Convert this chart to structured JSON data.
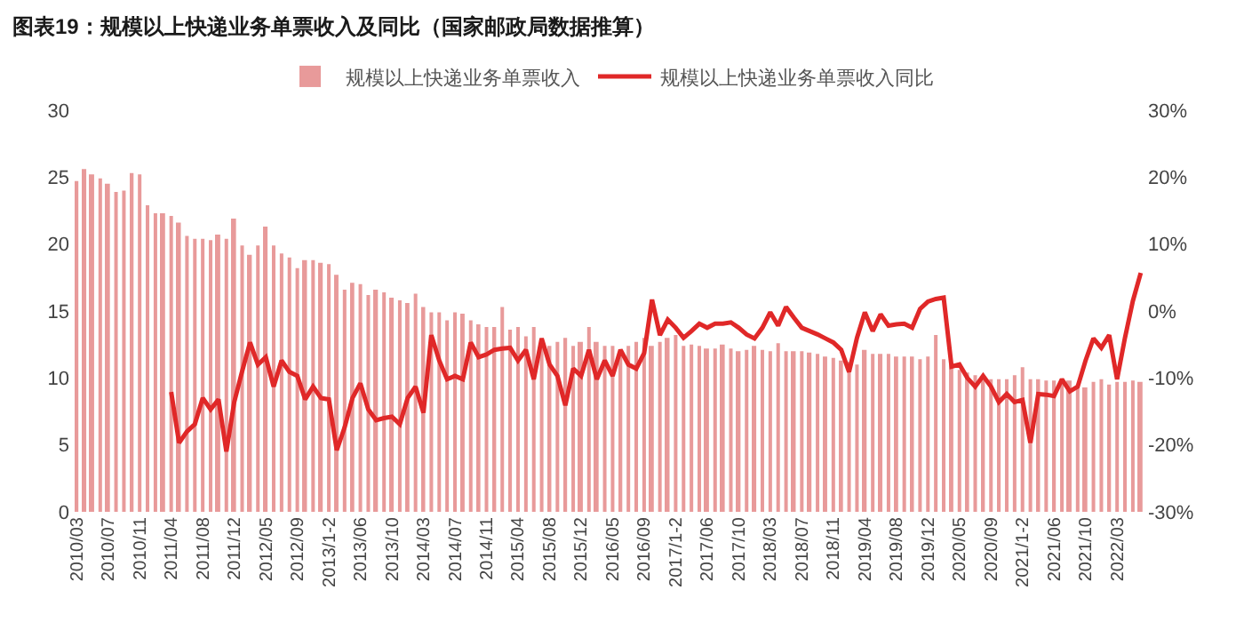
{
  "chart_data": {
    "type": "bar",
    "title": "图表19：规模以上快递业务单票收入及同比（国家邮政局数据推算）",
    "categories": [
      "2010/03",
      null,
      null,
      null,
      "2010/07",
      null,
      null,
      null,
      "2010/11",
      null,
      null,
      null,
      "2011/04",
      null,
      null,
      null,
      "2011/08",
      null,
      null,
      null,
      "2011/12",
      null,
      null,
      null,
      "2012/05",
      null,
      null,
      null,
      "2012/09",
      null,
      null,
      null,
      "2013/1-2",
      null,
      null,
      null,
      "2013/06",
      null,
      null,
      null,
      "2013/10",
      null,
      null,
      null,
      "2014/03",
      null,
      null,
      null,
      "2014/07",
      null,
      null,
      null,
      "2014/11",
      null,
      null,
      null,
      "2015/04",
      null,
      null,
      null,
      "2015/08",
      null,
      null,
      null,
      "2015/12",
      null,
      null,
      null,
      "2016/05",
      null,
      null,
      null,
      "2016/09",
      null,
      null,
      null,
      "2017/1-2",
      null,
      null,
      null,
      "2017/06",
      null,
      null,
      null,
      "2017/10",
      null,
      null,
      null,
      "2018/03",
      null,
      null,
      null,
      "2018/07",
      null,
      null,
      null,
      "2018/11",
      null,
      null,
      null,
      "2019/04",
      null,
      null,
      null,
      "2019/08",
      null,
      null,
      null,
      "2019/12",
      null,
      null,
      null,
      "2020/05",
      null,
      null,
      null,
      "2020/09",
      null,
      null,
      null,
      "2021/1-2",
      null,
      null,
      null,
      "2021/06",
      null,
      null,
      null,
      "2021/10",
      null,
      null,
      null,
      "2022/03",
      null,
      null,
      null
    ],
    "series": [
      {
        "name": "规模以上快递业务单票收入",
        "color": "#e89a9a",
        "values": [
          24.7,
          25.6,
          25.2,
          24.9,
          24.5,
          23.9,
          24.0,
          25.3,
          25.2,
          22.9,
          22.3,
          22.3,
          22.1,
          21.6,
          20.6,
          20.4,
          20.4,
          20.3,
          20.7,
          20.4,
          21.9,
          19.9,
          19.2,
          19.9,
          21.3,
          19.9,
          19.3,
          19.0,
          18.2,
          18.8,
          18.8,
          18.6,
          18.5,
          17.7,
          16.6,
          17.1,
          17.0,
          16.2,
          16.6,
          16.4,
          16.0,
          15.8,
          15.6,
          16.3,
          15.3,
          14.9,
          14.9,
          14.3,
          14.9,
          14.8,
          14.3,
          14.0,
          13.8,
          13.8,
          15.3,
          13.6,
          13.8,
          13.1,
          13.8,
          13.0,
          12.4,
          12.7,
          13.0,
          12.4,
          12.7,
          13.8,
          12.7,
          12.4,
          12.4,
          12.1,
          12.4,
          12.7,
          13.0,
          12.4,
          12.7,
          13.0,
          13.2,
          12.4,
          12.5,
          12.4,
          12.2,
          12.2,
          12.5,
          12.2,
          12.0,
          12.1,
          12.4,
          12.1,
          12.0,
          12.6,
          12.0,
          12.0,
          12.0,
          11.9,
          11.8,
          11.6,
          11.5,
          11.3,
          11.2,
          11.0,
          12.1,
          11.8,
          11.8,
          11.8,
          11.6,
          11.6,
          11.6,
          11.4,
          11.6,
          13.2,
          11.4,
          11.1,
          10.6,
          10.4,
          10.2,
          10.2,
          9.9,
          9.9,
          9.9,
          10.2,
          10.8,
          9.9,
          9.9,
          9.8,
          9.8,
          9.7,
          9.8,
          9.5,
          9.3,
          9.7,
          9.9,
          9.5,
          9.7,
          9.7,
          9.8,
          9.7
        ]
      },
      {
        "name": "规模以上快递业务单票收入同比",
        "type": "line",
        "axis": "y2",
        "color": "#e02828",
        "values": [
          null,
          null,
          null,
          null,
          null,
          null,
          null,
          null,
          null,
          null,
          null,
          null,
          -12.1,
          -19.7,
          -18,
          -16.9,
          -13,
          -14.7,
          -13.2,
          -21,
          -13.6,
          -9,
          -4.7,
          -8,
          -6.9,
          -11.3,
          -7.4,
          -9.1,
          -9.7,
          -13.2,
          -11.3,
          -13,
          -13.2,
          -20.8,
          -17.4,
          -13,
          -10.8,
          -14.7,
          -16.3,
          -16,
          -15.8,
          -16.9,
          -13,
          -11.3,
          -15.2,
          -3.6,
          -7.4,
          -10.2,
          -9.7,
          -10.2,
          -4.7,
          -6.9,
          -6.5,
          -5.8,
          -5.6,
          -5.5,
          -7.4,
          -5.8,
          -10.2,
          -4.1,
          -8,
          -9.7,
          -14.1,
          -8.6,
          -9.7,
          -5.8,
          -10.2,
          -7.4,
          -9.7,
          -5.8,
          -8,
          -8.6,
          -6.3,
          1.7,
          -3.6,
          -1.3,
          -2.5,
          -4,
          -3,
          -1.9,
          -2.5,
          -1.9,
          -1.9,
          -1.7,
          -2.5,
          -3.5,
          -4.1,
          -2.5,
          -0.2,
          -2.2,
          0.6,
          -1,
          -2.5,
          -3,
          -3.5,
          -4.1,
          -4.7,
          -5.8,
          -9.1,
          -4,
          -0.2,
          -3,
          -0.5,
          -2.2,
          -2,
          -1.9,
          -2.5,
          0.3,
          1.4,
          1.8,
          2,
          -8.3,
          -8,
          -10,
          -11.3,
          -9.7,
          -11.3,
          -13.6,
          -12.4,
          -13.6,
          -13.3,
          -19.7,
          -12.4,
          -12.5,
          -12.7,
          -10.2,
          -12,
          -11.3,
          -7.4,
          -4.1,
          -5.5,
          -3.6,
          -10.2,
          -4,
          1.5,
          5.7
        ]
      }
    ],
    "ylim": [
      0,
      30
    ],
    "yticks": [
      0,
      5,
      10,
      15,
      20,
      25,
      30
    ],
    "y2lim": [
      -30,
      30
    ],
    "y2ticks": [
      {
        "value": -30,
        "label": "-30%"
      },
      {
        "value": -20,
        "label": "-20%"
      },
      {
        "value": -10,
        "label": "-10%"
      },
      {
        "value": 0,
        "label": "0%"
      },
      {
        "value": 10,
        "label": "10%"
      },
      {
        "value": 20,
        "label": "20%"
      },
      {
        "value": 30,
        "label": "30%"
      }
    ],
    "legend": "top",
    "grid": false,
    "marker": "none",
    "line_style": "solid"
  }
}
